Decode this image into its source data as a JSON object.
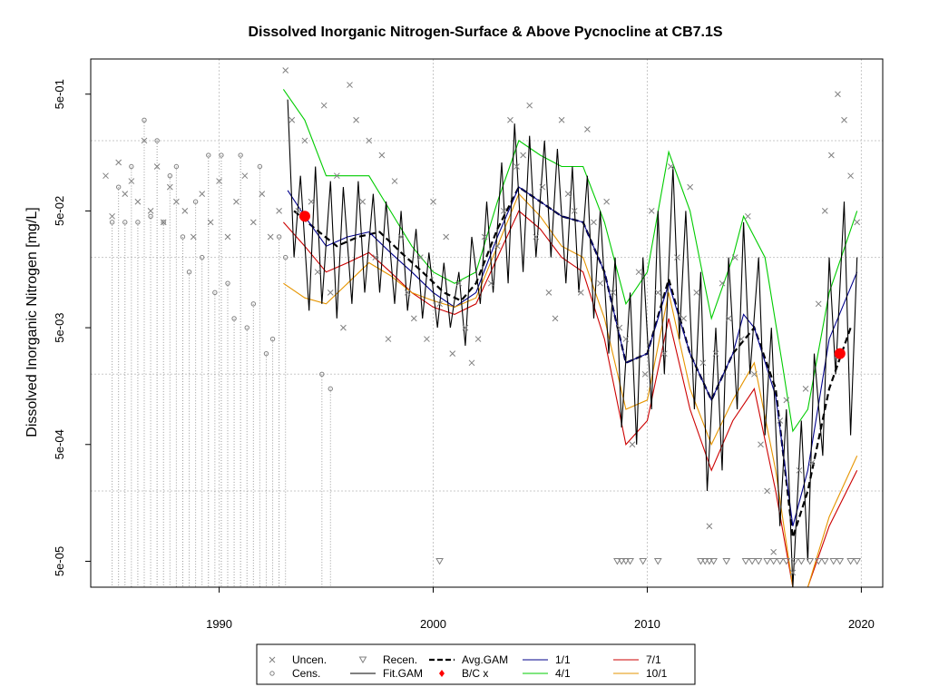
{
  "chart_data": {
    "type": "scatter",
    "title": "Dissolved Inorganic Nitrogen-Surface & Above Pycnocline at CB7.1S",
    "xlabel": "",
    "ylabel": "Dissolved Inorganic Nitrogen [mg/L]",
    "xlim": [
      1984,
      2021
    ],
    "ylim": [
      3e-05,
      1.0
    ],
    "log_y": true,
    "grid": true,
    "x_ticks": [
      1990,
      2000,
      2010,
      2020
    ],
    "x_tick_labels": [
      "1990",
      "2000",
      "2010",
      "2020"
    ],
    "y_tick_labels": [
      {
        "value": 0.5,
        "label": "5e-01"
      },
      {
        "value": 0.05,
        "label": "5e-02"
      },
      {
        "value": 0.005,
        "label": "5e-03"
      },
      {
        "value": 0.0005,
        "label": "5e-04"
      },
      {
        "value": 5e-05,
        "label": "5e-05"
      }
    ],
    "y_grid": [
      0.2,
      0.02,
      0.002,
      0.0002,
      2e-05
    ],
    "legend_position": "bottom",
    "legend": [
      {
        "label": "Uncen.",
        "symbol": "x",
        "color": "#808080"
      },
      {
        "label": "Cens.",
        "symbol": "circle",
        "color": "#808080"
      },
      {
        "label": "Recen.",
        "symbol": "triangle-down",
        "color": "#808080"
      },
      {
        "label": "Fit.GAM",
        "symbol": "line",
        "color": "#000000"
      },
      {
        "label": "Avg.GAM",
        "symbol": "dash",
        "color": "#000000"
      },
      {
        "label": "B/C x",
        "symbol": "diamond",
        "color": "#ff0000"
      },
      {
        "label": "1/1",
        "symbol": "line",
        "color": "#00008b"
      },
      {
        "label": "4/1",
        "symbol": "line",
        "color": "#00cc00"
      },
      {
        "label": "7/1",
        "symbol": "line",
        "color": "#cc0000"
      },
      {
        "label": "10/1",
        "symbol": "line",
        "color": "#e69500"
      }
    ],
    "series": [
      {
        "name": "Avg.GAM",
        "style": "dash",
        "color": "#000000",
        "x": [
          1993.5,
          1994.5,
          1995.5,
          1996.5,
          1997.5,
          1998.5,
          1999.5,
          2000.5,
          2001.3,
          2002.0,
          2003.0,
          2004.0,
          2005.0,
          2006.0,
          2007.0,
          2008.0,
          2009.0,
          2010.0,
          2011.0,
          2012.0,
          2013.0,
          2014.0,
          2015.0,
          2016.0,
          2016.8,
          2017.5,
          2018.5,
          2019.5
        ],
        "y": [
          0.05,
          0.035,
          0.025,
          0.03,
          0.033,
          0.022,
          0.015,
          0.01,
          0.0085,
          0.012,
          0.035,
          0.08,
          0.06,
          0.045,
          0.04,
          0.015,
          0.0025,
          0.003,
          0.013,
          0.003,
          0.0012,
          0.003,
          0.005,
          0.0015,
          8e-05,
          0.0002,
          0.0015,
          0.005
        ]
      },
      {
        "name": "1/1",
        "style": "line",
        "color": "#00008b",
        "x": [
          1993.2,
          1994.0,
          1995.0,
          1996.0,
          1997.0,
          1998.0,
          1999.0,
          2000.0,
          2001.0,
          2002.0,
          2003.0,
          2004.0,
          2005.0,
          2006.0,
          2007.0,
          2008.0,
          2009.0,
          2010.0,
          2011.0,
          2012.0,
          2013.0,
          2014.0,
          2014.5,
          2015.0,
          2016.0,
          2016.8,
          2017.5,
          2018.5,
          2019.8
        ],
        "y": [
          0.075,
          0.045,
          0.025,
          0.03,
          0.033,
          0.022,
          0.015,
          0.01,
          0.0075,
          0.01,
          0.03,
          0.08,
          0.06,
          0.045,
          0.04,
          0.015,
          0.0025,
          0.003,
          0.012,
          0.003,
          0.0012,
          0.003,
          0.0065,
          0.005,
          0.0013,
          0.0001,
          0.0003,
          0.004,
          0.015
        ]
      },
      {
        "name": "4/1",
        "style": "line",
        "color": "#00cc00",
        "x": [
          1993.0,
          1994.0,
          1995.0,
          1996.0,
          1997.0,
          1998.0,
          1999.0,
          2000.0,
          2001.0,
          2002.0,
          2003.0,
          2004.0,
          2005.0,
          2006.0,
          2007.0,
          2008.0,
          2009.0,
          2010.0,
          2011.0,
          2012.0,
          2013.0,
          2014.0,
          2014.5,
          2015.5,
          2016.3,
          2016.8,
          2017.5,
          2018.5,
          2019.8
        ],
        "y": [
          0.55,
          0.3,
          0.1,
          0.1,
          0.1,
          0.05,
          0.025,
          0.015,
          0.012,
          0.015,
          0.06,
          0.2,
          0.15,
          0.12,
          0.12,
          0.04,
          0.008,
          0.015,
          0.16,
          0.05,
          0.006,
          0.02,
          0.045,
          0.02,
          0.0025,
          0.00065,
          0.001,
          0.01,
          0.05
        ]
      },
      {
        "name": "7/1",
        "style": "line",
        "color": "#cc0000",
        "x": [
          1993.0,
          1994.0,
          1995.0,
          1996.0,
          1997.0,
          1998.0,
          1999.0,
          2000.0,
          2001.0,
          2002.0,
          2003.0,
          2004.0,
          2005.0,
          2006.0,
          2007.0,
          2008.0,
          2009.0,
          2010.0,
          2011.0,
          2012.0,
          2013.0,
          2014.0,
          2015.0,
          2016.0,
          2016.8,
          2017.5,
          2018.5,
          2019.8
        ],
        "y": [
          0.04,
          0.025,
          0.015,
          0.018,
          0.022,
          0.015,
          0.01,
          0.0075,
          0.0065,
          0.008,
          0.02,
          0.05,
          0.035,
          0.02,
          0.015,
          0.004,
          0.0005,
          0.0008,
          0.006,
          0.001,
          0.0003,
          0.0008,
          0.0015,
          0.0002,
          2e-05,
          2e-05,
          0.0001,
          0.0003
        ]
      },
      {
        "name": "10/1",
        "style": "line",
        "color": "#e69500",
        "x": [
          1993.0,
          1994.0,
          1995.0,
          1996.0,
          1997.0,
          1998.0,
          1999.0,
          2000.0,
          2001.0,
          2002.0,
          2003.0,
          2004.0,
          2005.0,
          2006.0,
          2007.0,
          2008.0,
          2009.0,
          2010.0,
          2011.0,
          2012.0,
          2013.0,
          2014.0,
          2015.0,
          2016.0,
          2016.8,
          2017.5,
          2018.5,
          2019.8
        ],
        "y": [
          0.012,
          0.009,
          0.008,
          0.012,
          0.018,
          0.014,
          0.01,
          0.0085,
          0.0075,
          0.009,
          0.025,
          0.07,
          0.045,
          0.025,
          0.02,
          0.006,
          0.001,
          0.0012,
          0.01,
          0.0015,
          0.0005,
          0.0012,
          0.0025,
          0.0003,
          2e-05,
          2e-05,
          0.00012,
          0.0004
        ]
      },
      {
        "name": "Fit.GAM",
        "style": "line",
        "color": "#000000",
        "x": [
          1993.2,
          1993.5,
          1993.8,
          1994.2,
          1994.5,
          1994.8,
          1995.2,
          1995.5,
          1995.8,
          1996.2,
          1996.5,
          1996.8,
          1997.2,
          1997.5,
          1997.8,
          1998.2,
          1998.5,
          1998.8,
          1999.2,
          1999.5,
          1999.8,
          2000.2,
          2000.5,
          2000.8,
          2001.2,
          2001.5,
          2001.8,
          2002.2,
          2002.5,
          2002.8,
          2003.2,
          2003.5,
          2003.8,
          2004.2,
          2004.5,
          2004.8,
          2005.2,
          2005.5,
          2005.8,
          2006.2,
          2006.5,
          2006.8,
          2007.2,
          2007.5,
          2007.8,
          2008.2,
          2008.5,
          2008.8,
          2009.2,
          2009.5,
          2009.8,
          2010.2,
          2010.5,
          2010.8,
          2011.2,
          2011.5,
          2011.8,
          2012.2,
          2012.5,
          2012.8,
          2013.2,
          2013.5,
          2013.8,
          2014.2,
          2014.5,
          2014.8,
          2015.2,
          2015.5,
          2015.8,
          2016.2,
          2016.5,
          2016.8,
          2017.2,
          2017.5,
          2017.8,
          2018.2,
          2018.5,
          2018.8,
          2019.2,
          2019.5,
          2019.8
        ],
        "y": [
          0.45,
          0.02,
          0.1,
          0.007,
          0.12,
          0.008,
          0.09,
          0.006,
          0.08,
          0.008,
          0.09,
          0.01,
          0.07,
          0.01,
          0.06,
          0.008,
          0.05,
          0.007,
          0.035,
          0.006,
          0.022,
          0.005,
          0.018,
          0.005,
          0.015,
          0.0035,
          0.03,
          0.008,
          0.06,
          0.01,
          0.13,
          0.012,
          0.28,
          0.015,
          0.22,
          0.02,
          0.2,
          0.02,
          0.17,
          0.012,
          0.12,
          0.01,
          0.1,
          0.006,
          0.05,
          0.003,
          0.02,
          0.0007,
          0.01,
          0.0005,
          0.02,
          0.001,
          0.05,
          0.002,
          0.12,
          0.004,
          0.05,
          0.001,
          0.015,
          0.0002,
          0.005,
          0.0003,
          0.02,
          0.001,
          0.04,
          0.002,
          0.02,
          0.0006,
          0.005,
          0.0001,
          0.001,
          3e-05,
          0.0008,
          5e-05,
          0.003,
          0.0004,
          0.02,
          0.002,
          0.06,
          0.0006,
          0.02
        ]
      }
    ],
    "bc_points": [
      {
        "x": 1994.0,
        "y": 0.045
      },
      {
        "x": 2019.0,
        "y": 0.003
      }
    ],
    "uncensored_points": {
      "x": [
        1984.7,
        1985.0,
        1985.3,
        1985.6,
        1985.9,
        1986.2,
        1986.5,
        1986.8,
        1987.1,
        1987.4,
        1987.7,
        1988.0,
        1988.4,
        1988.8,
        1989.2,
        1989.6,
        1990.0,
        1990.4,
        1990.8,
        1991.2,
        1991.6,
        1992.0,
        1992.4,
        1992.8,
        1993.1,
        1993.4,
        1993.7,
        1994.0,
        1994.3,
        1994.6,
        1994.9,
        1995.2,
        1995.5,
        1995.8,
        1996.1,
        1996.4,
        1996.7,
        1997.0,
        1997.3,
        1997.6,
        1997.9,
        1998.2,
        1998.5,
        1998.8,
        1999.1,
        1999.4,
        1999.7,
        2000.0,
        2000.3,
        2000.6,
        2000.9,
        2001.2,
        2001.5,
        2001.8,
        2002.1,
        2002.4,
        2002.7,
        2003.0,
        2003.3,
        2003.6,
        2003.9,
        2004.2,
        2004.5,
        2004.8,
        2005.1,
        2005.4,
        2005.7,
        2006.0,
        2006.3,
        2006.6,
        2006.9,
        2007.2,
        2007.5,
        2007.8,
        2008.1,
        2008.4,
        2008.7,
        2009.0,
        2009.3,
        2009.6,
        2009.9,
        2010.2,
        2010.5,
        2010.8,
        2011.1,
        2011.4,
        2011.7,
        2012.0,
        2012.3,
        2012.6,
        2012.9,
        2013.2,
        2013.5,
        2013.8,
        2014.1,
        2014.4,
        2014.7,
        2015.0,
        2015.3,
        2015.6,
        2015.9,
        2016.2,
        2016.5,
        2016.8,
        2017.1,
        2017.4,
        2017.7,
        2018.0,
        2018.3,
        2018.6,
        2018.9,
        2019.2,
        2019.5,
        2019.8
      ],
      "y": [
        0.1,
        0.045,
        0.13,
        0.07,
        0.09,
        0.06,
        0.2,
        0.05,
        0.12,
        0.04,
        0.08,
        0.06,
        0.05,
        0.03,
        0.07,
        0.04,
        0.09,
        0.03,
        0.06,
        0.1,
        0.04,
        0.07,
        0.03,
        0.05,
        0.8,
        0.3,
        0.05,
        0.2,
        0.06,
        0.015,
        0.4,
        0.01,
        0.1,
        0.005,
        0.6,
        0.3,
        0.06,
        0.2,
        0.02,
        0.15,
        0.004,
        0.09,
        0.03,
        0.01,
        0.006,
        0.02,
        0.004,
        0.06,
        0.008,
        0.03,
        0.003,
        0.012,
        0.005,
        0.0025,
        0.004,
        0.03,
        0.012,
        0.025,
        0.05,
        0.3,
        0.12,
        0.15,
        0.4,
        0.03,
        0.08,
        0.01,
        0.006,
        0.3,
        0.07,
        0.05,
        0.01,
        0.25,
        0.04,
        0.012,
        0.06,
        0.01,
        0.005,
        0.004,
        0.0005,
        0.015,
        0.002,
        0.05,
        0.01,
        0.003,
        0.12,
        0.02,
        0.006,
        0.08,
        0.01,
        0.0025,
        0.0001,
        0.003,
        0.012,
        0.006,
        0.02,
        0.004,
        0.045,
        0.002,
        0.0005,
        0.0002,
        6e-05,
        0.0008,
        0.0012,
        4e-05,
        0.0003,
        0.0015,
        0.00035,
        0.008,
        0.05,
        0.15,
        0.5,
        0.3,
        0.1,
        0.04
      ]
    },
    "censored_points": {
      "x": [
        1985.0,
        1985.3,
        1985.6,
        1985.9,
        1986.2,
        1986.5,
        1986.8,
        1987.1,
        1987.4,
        1987.7,
        1988.0,
        1988.3,
        1988.6,
        1988.9,
        1989.2,
        1989.5,
        1989.8,
        1990.1,
        1990.4,
        1990.7,
        1991.0,
        1991.3,
        1991.6,
        1991.9,
        1992.2,
        1992.5,
        1992.8,
        1993.1,
        1994.8,
        1995.2
      ],
      "y": [
        0.04,
        0.08,
        0.04,
        0.12,
        0.04,
        0.3,
        0.045,
        0.2,
        0.04,
        0.1,
        0.12,
        0.03,
        0.015,
        0.06,
        0.02,
        0.15,
        0.01,
        0.15,
        0.012,
        0.006,
        0.15,
        0.005,
        0.008,
        0.12,
        0.003,
        0.004,
        0.03,
        0.02,
        0.002,
        0.0015
      ]
    },
    "recensored_points": {
      "x": [
        2000.3,
        2008.6,
        2008.8,
        2009.0,
        2009.2,
        2009.8,
        2010.5,
        2012.5,
        2012.7,
        2012.9,
        2013.1,
        2013.7,
        2014.6,
        2014.9,
        2015.2,
        2015.6,
        2015.9,
        2016.2,
        2016.5,
        2016.9,
        2017.2,
        2017.6,
        2018.0,
        2018.3,
        2018.7,
        2019.0,
        2019.5,
        2019.8
      ],
      "y": [
        5e-05,
        5e-05,
        5e-05,
        5e-05,
        5e-05,
        5e-05,
        5e-05,
        5e-05,
        5e-05,
        5e-05,
        5e-05,
        5e-05,
        5e-05,
        5e-05,
        5e-05,
        5e-05,
        5e-05,
        5e-05,
        5e-05,
        5e-05,
        5e-05,
        5e-05,
        5e-05,
        5e-05,
        5e-05,
        5e-05,
        5e-05,
        5e-05
      ]
    }
  }
}
